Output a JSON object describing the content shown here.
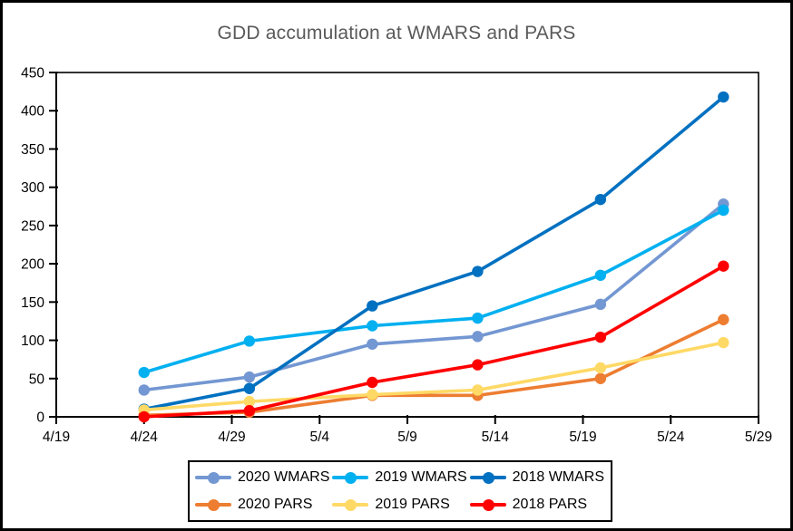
{
  "title": "GDD accumulation at WMARS and PARS",
  "title_color": "#595959",
  "chart_data": {
    "type": "line",
    "x_dates": [
      "4/24",
      "4/30",
      "5/7",
      "5/13",
      "5/20",
      "5/27"
    ],
    "x_day_offsets": [
      5,
      11,
      18,
      24,
      31,
      38
    ],
    "series": [
      {
        "name": "2020 WMARS",
        "color": "#7397D2",
        "values": [
          35,
          52,
          95,
          105,
          147,
          278
        ]
      },
      {
        "name": "2019 WMARS",
        "color": "#00B0F0",
        "values": [
          58,
          99,
          119,
          129,
          185,
          270
        ]
      },
      {
        "name": "2018 WMARS",
        "color": "#0070C0",
        "values": [
          10,
          37,
          145,
          190,
          284,
          418
        ]
      },
      {
        "name": "2020 PARS",
        "color": "#ED7D31",
        "values": [
          2,
          6,
          28,
          28,
          50,
          127
        ]
      },
      {
        "name": "2019 PARS",
        "color": "#FFD966",
        "values": [
          9,
          20,
          29,
          35,
          64,
          97
        ]
      },
      {
        "name": "2018 PARS",
        "color": "#FF0000",
        "values": [
          0,
          8,
          45,
          68,
          104,
          197
        ]
      }
    ],
    "x_axis": {
      "tick_labels": [
        "4/19",
        "4/24",
        "4/29",
        "5/4",
        "5/9",
        "5/14",
        "5/19",
        "5/24",
        "5/29"
      ],
      "tick_days": [
        0,
        5,
        10,
        15,
        20,
        25,
        30,
        35,
        40
      ],
      "range_days": [
        0,
        40
      ]
    },
    "y_axis": {
      "ticks": [
        0,
        50,
        100,
        150,
        200,
        250,
        300,
        350,
        400,
        450
      ],
      "range": [
        0,
        450
      ]
    },
    "grid": false,
    "legend_position": "bottom"
  }
}
